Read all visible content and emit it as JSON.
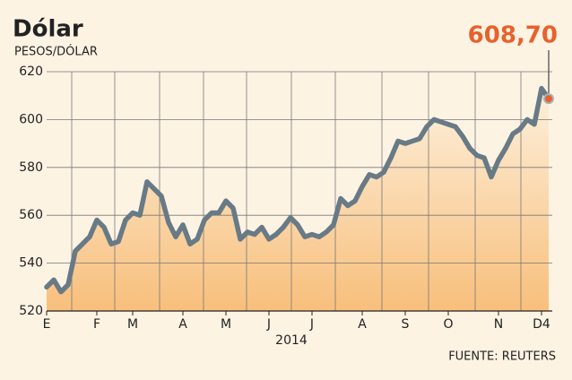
{
  "chart_data": {
    "type": "line",
    "title": "Dólar",
    "subtitle": "PESOS/DÓLAR",
    "xlabel": "2014",
    "source": "FUENTE: REUTERS",
    "annotation": "608,70",
    "categories": [
      "E",
      null,
      null,
      null,
      null,
      null,
      null,
      "F",
      null,
      null,
      null,
      null,
      "M",
      null,
      null,
      null,
      null,
      null,
      null,
      "A",
      null,
      null,
      null,
      null,
      null,
      "M",
      null,
      null,
      null,
      null,
      null,
      "J",
      null,
      null,
      null,
      null,
      null,
      "J",
      null,
      null,
      null,
      null,
      null,
      null,
      "A",
      null,
      null,
      null,
      null,
      null,
      "S",
      null,
      null,
      null,
      null,
      null,
      "O",
      null,
      null,
      null,
      null,
      null,
      null,
      "N",
      null,
      null,
      null,
      null,
      null,
      "D4",
      null
    ],
    "series": [
      {
        "name": "Dólar",
        "color": "#687a86",
        "values": [
          530,
          533,
          528,
          531,
          545,
          548,
          551,
          558,
          555,
          548,
          549,
          558,
          561,
          560,
          574,
          571,
          568,
          557,
          551,
          556,
          548,
          550,
          558,
          561,
          561,
          566,
          563,
          550,
          553,
          552,
          555,
          550,
          552,
          555,
          559,
          556,
          551,
          552,
          551,
          553,
          556,
          567,
          564,
          566,
          572,
          577,
          576,
          578,
          584,
          591,
          590,
          591,
          592,
          597,
          600,
          599,
          598,
          597,
          593,
          588,
          585,
          584,
          576,
          583,
          588,
          594,
          596,
          600,
          598,
          613,
          608.7
        ]
      }
    ],
    "ylim": [
      520,
      620
    ],
    "yticks": [
      520,
      540,
      560,
      580,
      600,
      620
    ],
    "grid": true,
    "area_colors": [
      "#fdf0dc",
      "#f8bf7c"
    ],
    "highlight_color": "#e8612c"
  }
}
